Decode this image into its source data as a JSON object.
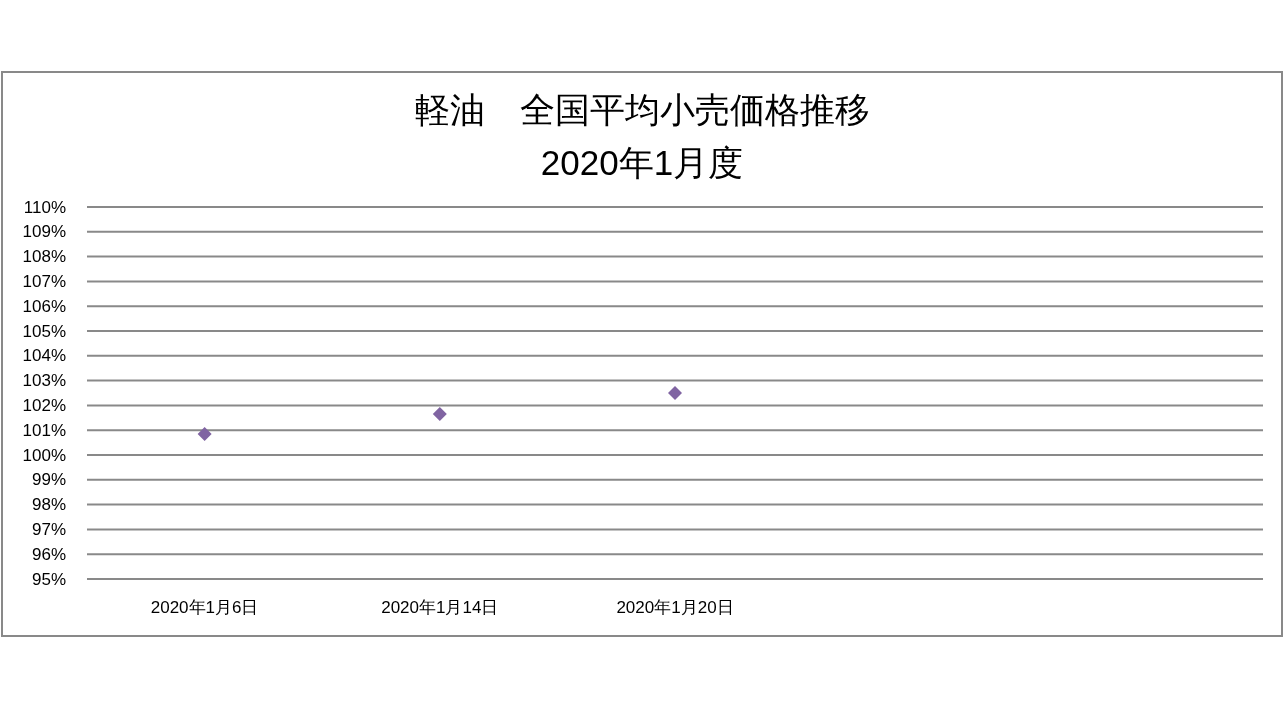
{
  "chart_data": {
    "type": "scatter",
    "title": "軽油　全国平均小売価格推移",
    "subtitle": "2020年1月度",
    "categories": [
      "2020年1月6日",
      "2020年1月14日",
      "2020年1月20日",
      null,
      null
    ],
    "values": [
      100.85,
      101.65,
      102.5,
      null,
      null
    ],
    "color": "#8064a2",
    "marker": "diamond",
    "ylim": [
      95,
      110
    ],
    "yticks": [
      {
        "value": 95,
        "label": "95%"
      },
      {
        "value": 96,
        "label": "96%"
      },
      {
        "value": 97,
        "label": "97%"
      },
      {
        "value": 98,
        "label": "98%"
      },
      {
        "value": 99,
        "label": "99%"
      },
      {
        "value": 100,
        "label": "100%"
      },
      {
        "value": 101,
        "label": "101%"
      },
      {
        "value": 102,
        "label": "102%"
      },
      {
        "value": 103,
        "label": "103%"
      },
      {
        "value": 104,
        "label": "104%"
      },
      {
        "value": 105,
        "label": "105%"
      },
      {
        "value": 106,
        "label": "106%"
      },
      {
        "value": 107,
        "label": "107%"
      },
      {
        "value": 108,
        "label": "108%"
      },
      {
        "value": 109,
        "label": "109%"
      },
      {
        "value": 110,
        "label": "110%"
      }
    ],
    "grid": "y"
  }
}
